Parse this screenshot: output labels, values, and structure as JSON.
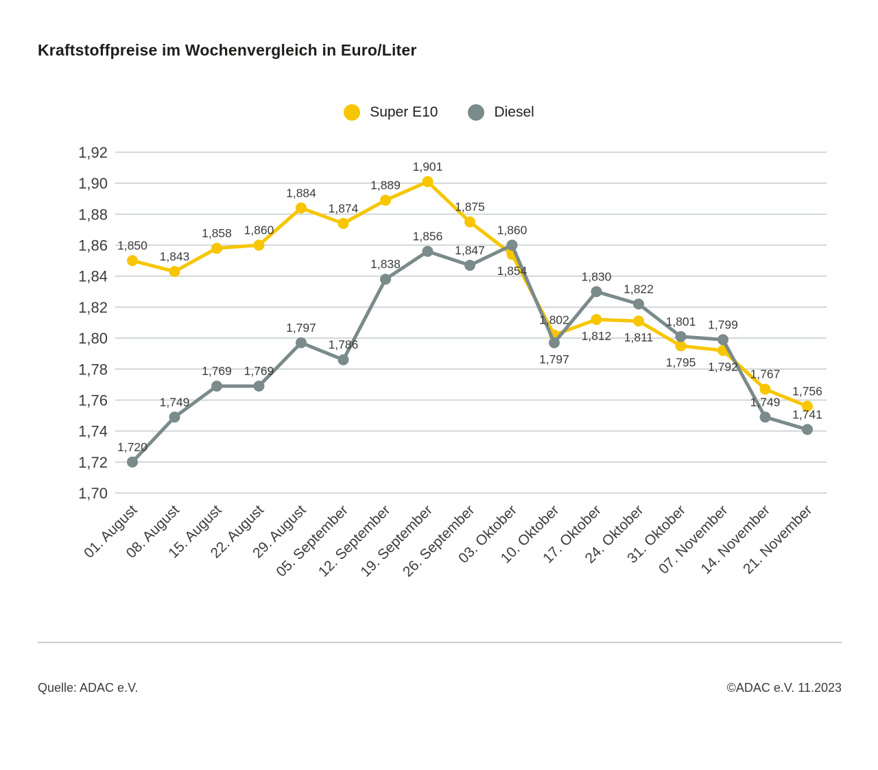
{
  "page": {
    "footer_left": "Quelle: ADAC e.V.",
    "footer_right": "©ADAC e.V. 11.2023"
  },
  "chart_data": {
    "type": "line",
    "title": "Kraftstoffpreise im Wochenvergleich in Euro/Liter",
    "xlabel": "",
    "ylabel": "",
    "ylim": [
      1.7,
      1.92
    ],
    "ytick_step": 0.02,
    "grid": true,
    "legend_position": "top-center",
    "decimal_separator": ",",
    "value_decimals": 3,
    "categories": [
      "01. August",
      "08. August",
      "15. August",
      "22. August",
      "29. August",
      "05. September",
      "12. September",
      "19. September",
      "26. September",
      "03. Oktober",
      "10. Oktober",
      "17. Oktober",
      "24. Oktober",
      "31. Oktober",
      "07. November",
      "14. November",
      "21. November"
    ],
    "series": [
      {
        "name": "Super E10",
        "color": "#F7C600",
        "values": [
          1.85,
          1.843,
          1.858,
          1.86,
          1.884,
          1.874,
          1.889,
          1.901,
          1.875,
          1.854,
          1.802,
          1.812,
          1.811,
          1.795,
          1.792,
          1.767,
          1.756
        ],
        "label_positions": [
          "above",
          "above",
          "above",
          "above",
          "above",
          "above",
          "above",
          "above",
          "above",
          "below",
          "above",
          "below",
          "below",
          "below",
          "below",
          "above",
          "above"
        ]
      },
      {
        "name": "Diesel",
        "color": "#7B8A8B",
        "values": [
          1.72,
          1.749,
          1.769,
          1.769,
          1.797,
          1.786,
          1.838,
          1.856,
          1.847,
          1.86,
          1.797,
          1.83,
          1.822,
          1.801,
          1.799,
          1.749,
          1.741
        ],
        "label_positions": [
          "above",
          "above",
          "above",
          "above",
          "above",
          "above",
          "above",
          "above",
          "above",
          "above",
          "below",
          "above",
          "above",
          "above",
          "above",
          "above",
          "above"
        ]
      }
    ]
  }
}
